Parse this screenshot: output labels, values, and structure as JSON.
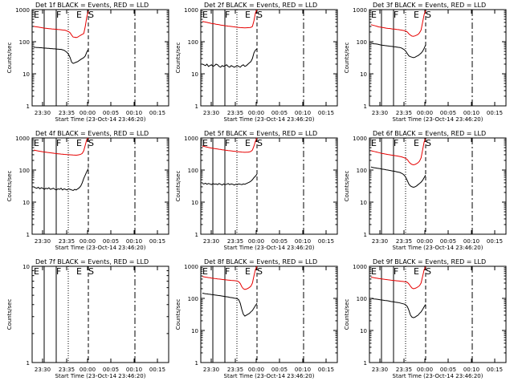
{
  "shared": {
    "ylabel": "Counts/sec",
    "xlabel": "Start Time (23-Oct-14 23:46:20)",
    "ytick_labels": [
      "1",
      "10",
      "100",
      "1000"
    ],
    "xtick_labels": [
      "23:30",
      "23:35",
      "00:00",
      "00:05",
      "00:10",
      "00:15"
    ],
    "colors": {
      "events": "#000000",
      "lld": "#e60000",
      "axes": "#000000"
    }
  },
  "chart_data": [
    {
      "type": "line",
      "title": "Det 1f BLACK = Events, RED = LLD",
      "markers": [
        "E",
        "F",
        "E",
        "S"
      ],
      "ylim": [
        1,
        1000
      ],
      "yscale": "log",
      "series": [
        {
          "values": [
            300,
            295,
            290,
            285,
            280,
            275,
            270,
            265,
            262,
            258,
            255,
            252,
            250,
            248,
            246,
            242,
            240,
            238,
            236,
            232,
            230,
            225,
            215,
            205,
            190,
            160,
            140,
            138,
            135,
            140,
            150,
            160,
            170,
            180,
            300,
            600,
            900
          ]
        },
        {
          "values": [
            68,
            67,
            66,
            66,
            65,
            65,
            64,
            63,
            63,
            62,
            62,
            61,
            61,
            60,
            60,
            59,
            59,
            58,
            58,
            56,
            54,
            50,
            46,
            40,
            32,
            23,
            21,
            22,
            23,
            24,
            26,
            28,
            30,
            32,
            36,
            48,
            58
          ]
        }
      ]
    },
    {
      "type": "line",
      "title": "Det 2f BLACK = Events, RED = LLD",
      "markers": [
        "E",
        "F",
        "E",
        "S"
      ],
      "ylim": [
        1,
        1000
      ],
      "yscale": "log",
      "series": [
        {
          "values": [
            430,
            420,
            410,
            400,
            390,
            380,
            372,
            365,
            358,
            350,
            345,
            338,
            332,
            326,
            320,
            315,
            310,
            306,
            302,
            298,
            294,
            290,
            286,
            282,
            278,
            276,
            274,
            272,
            270,
            272,
            274,
            276,
            280,
            300,
            450,
            800,
            1000
          ]
        },
        {
          "values": [
            20,
            19,
            18,
            20,
            17,
            18,
            19,
            17,
            18,
            20,
            19,
            17,
            16,
            18,
            17,
            18,
            19,
            17,
            16,
            18,
            17,
            16,
            17,
            18,
            17,
            16,
            18,
            19,
            17,
            18,
            20,
            22,
            24,
            30,
            45,
            55,
            60
          ]
        }
      ]
    },
    {
      "type": "line",
      "title": "Det 3f BLACK = Events, RED = LLD",
      "markers": [
        "E",
        "F",
        "E",
        "S"
      ],
      "ylim": [
        1,
        1000
      ],
      "yscale": "log",
      "series": [
        {
          "values": [
            340,
            330,
            320,
            310,
            300,
            290,
            285,
            280,
            275,
            270,
            265,
            260,
            258,
            255,
            250,
            248,
            245,
            240,
            238,
            235,
            230,
            225,
            220,
            215,
            200,
            175,
            160,
            150,
            148,
            152,
            160,
            170,
            190,
            230,
            400,
            700,
            950
          ]
        },
        {
          "values": [
            90,
            88,
            86,
            85,
            84,
            82,
            80,
            78,
            77,
            76,
            75,
            74,
            73,
            72,
            71,
            70,
            69,
            68,
            67,
            66,
            64,
            60,
            56,
            50,
            42,
            36,
            34,
            33,
            32,
            33,
            35,
            37,
            40,
            44,
            50,
            62,
            80
          ]
        }
      ]
    },
    {
      "type": "line",
      "title": "Det 4f BLACK = Events, RED = LLD",
      "markers": [
        "E",
        "F",
        "E",
        "S"
      ],
      "ylim": [
        1,
        1000
      ],
      "yscale": "log",
      "series": [
        {
          "values": [
            420,
            410,
            400,
            392,
            385,
            378,
            370,
            365,
            360,
            355,
            350,
            345,
            340,
            335,
            330,
            326,
            322,
            318,
            315,
            312,
            308,
            305,
            302,
            300,
            298,
            296,
            294,
            292,
            290,
            295,
            300,
            310,
            330,
            400,
            600,
            900,
            1000
          ]
        },
        {
          "values": [
            30,
            28,
            27,
            29,
            26,
            28,
            27,
            25,
            27,
            26,
            28,
            25,
            26,
            27,
            25,
            24,
            26,
            25,
            27,
            24,
            26,
            25,
            24,
            26,
            25,
            24,
            23,
            25,
            24,
            26,
            28,
            32,
            40,
            55,
            70,
            90,
            110
          ]
        }
      ]
    },
    {
      "type": "line",
      "title": "Det 5f BLACK = Events, RED = LLD",
      "markers": [
        "E",
        "F",
        "E",
        "S"
      ],
      "ylim": [
        1,
        1000
      ],
      "yscale": "log",
      "series": [
        {
          "values": [
            560,
            545,
            530,
            518,
            505,
            495,
            485,
            475,
            468,
            460,
            452,
            445,
            438,
            430,
            424,
            418,
            412,
            406,
            400,
            395,
            390,
            385,
            380,
            376,
            372,
            368,
            364,
            360,
            356,
            358,
            362,
            368,
            380,
            420,
            560,
            800,
            1000
          ]
        },
        {
          "values": [
            38,
            37,
            39,
            36,
            38,
            37,
            35,
            38,
            36,
            37,
            35,
            38,
            36,
            34,
            37,
            35,
            36,
            38,
            35,
            37,
            36,
            34,
            36,
            35,
            37,
            36,
            35,
            37,
            36,
            38,
            40,
            42,
            45,
            50,
            58,
            65,
            75
          ]
        }
      ]
    },
    {
      "type": "line",
      "title": "Det 6f BLACK = Events, RED = LLD",
      "markers": [
        "E",
        "F",
        "E",
        "S"
      ],
      "ylim": [
        1,
        1000
      ],
      "yscale": "log",
      "series": [
        {
          "values": [
            400,
            390,
            380,
            370,
            360,
            350,
            340,
            332,
            325,
            318,
            312,
            306,
            300,
            295,
            290,
            285,
            280,
            275,
            270,
            265,
            258,
            250,
            240,
            228,
            210,
            180,
            160,
            150,
            145,
            150,
            158,
            170,
            190,
            240,
            420,
            750,
            950
          ]
        },
        {
          "values": [
            125,
            120,
            118,
            116,
            114,
            112,
            110,
            108,
            106,
            104,
            102,
            100,
            98,
            96,
            94,
            92,
            90,
            88,
            86,
            84,
            80,
            75,
            68,
            58,
            46,
            36,
            32,
            30,
            29,
            30,
            32,
            35,
            38,
            42,
            48,
            58,
            70
          ]
        }
      ]
    },
    {
      "type": "line",
      "title": "Det 7f BLACK = Events, RED = LLD",
      "markers": [
        "E",
        "F",
        "E",
        "S"
      ],
      "ylim": [
        1,
        10
      ],
      "yscale": "log",
      "series": []
    },
    {
      "type": "line",
      "title": "Det 8f BLACK = Events, RED = LLD",
      "markers": [
        "E",
        "F",
        "E",
        "S"
      ],
      "ylim": [
        1,
        1000
      ],
      "yscale": "log",
      "series": [
        {
          "values": [
            480,
            470,
            460,
            452,
            445,
            438,
            430,
            424,
            418,
            412,
            406,
            400,
            395,
            390,
            385,
            380,
            376,
            372,
            368,
            364,
            360,
            356,
            352,
            348,
            330,
            290,
            230,
            200,
            190,
            195,
            205,
            220,
            240,
            300,
            500,
            800,
            1000
          ]
        },
        {
          "values": [
            145,
            142,
            140,
            138,
            136,
            134,
            132,
            130,
            128,
            126,
            124,
            122,
            120,
            118,
            116,
            114,
            112,
            110,
            108,
            106,
            104,
            102,
            100,
            98,
            90,
            70,
            45,
            32,
            28,
            30,
            32,
            34,
            38,
            42,
            50,
            60,
            70
          ]
        }
      ]
    },
    {
      "type": "line",
      "title": "Det 9f BLACK = Events, RED = LLD",
      "markers": [
        "E",
        "F",
        "E",
        "S"
      ],
      "ylim": [
        1,
        1000
      ],
      "yscale": "log",
      "series": [
        {
          "values": [
            460,
            450,
            440,
            432,
            425,
            418,
            410,
            404,
            398,
            392,
            386,
            380,
            375,
            370,
            365,
            360,
            356,
            352,
            348,
            344,
            340,
            336,
            332,
            328,
            315,
            280,
            240,
            210,
            200,
            205,
            215,
            230,
            250,
            300,
            480,
            780,
            980
          ]
        },
        {
          "values": [
            100,
            98,
            96,
            95,
            94,
            92,
            90,
            89,
            88,
            86,
            85,
            84,
            82,
            80,
            79,
            78,
            76,
            75,
            74,
            72,
            70,
            68,
            66,
            62,
            55,
            42,
            30,
            26,
            25,
            26,
            28,
            30,
            34,
            38,
            45,
            55,
            65
          ]
        }
      ]
    }
  ]
}
